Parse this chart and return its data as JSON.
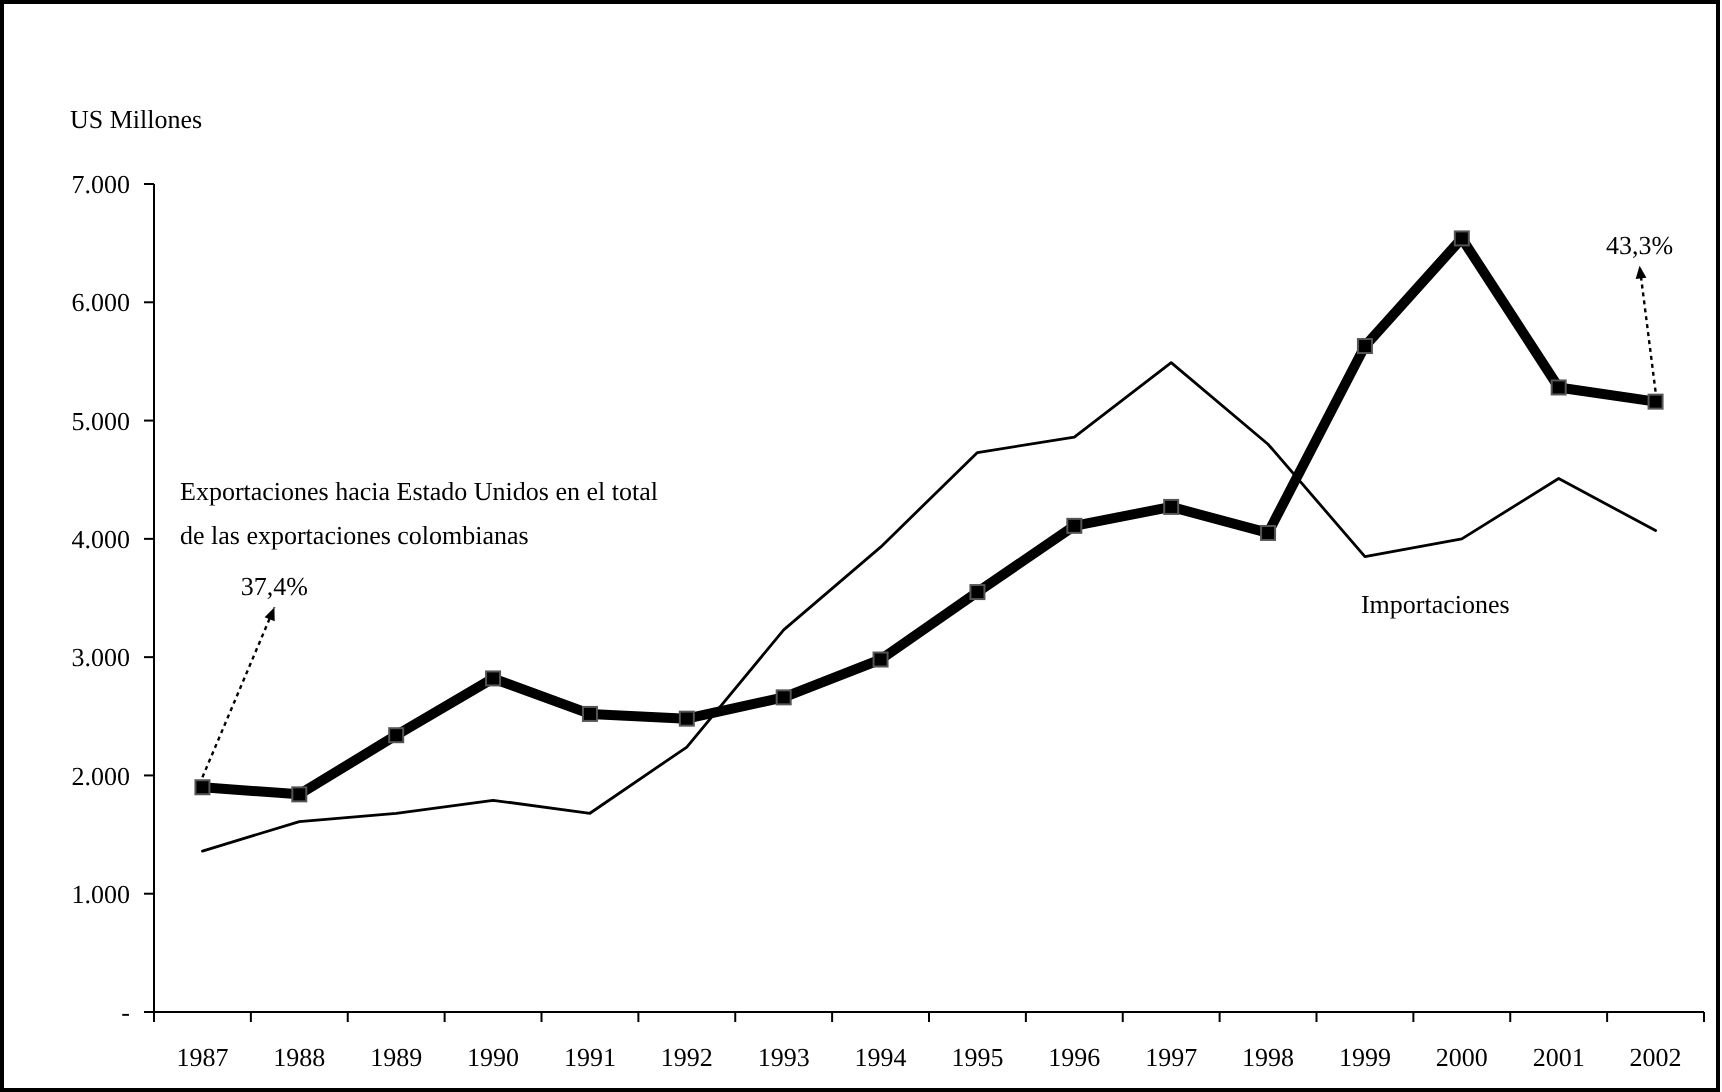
{
  "chart_data": {
    "type": "line",
    "ylabel": "US Millones",
    "categories": [
      "1987",
      "1988",
      "1989",
      "1990",
      "1991",
      "1992",
      "1993",
      "1994",
      "1995",
      "1996",
      "1997",
      "1998",
      "1999",
      "2000",
      "2001",
      "2002"
    ],
    "series": [
      {
        "color": "#000000",
        "marker": "square",
        "values": [
          1900,
          1840,
          2340,
          2820,
          2520,
          2480,
          2660,
          2980,
          3550,
          4110,
          4270,
          4050,
          5630,
          6540,
          5280,
          5160
        ]
      },
      {
        "name": "Importaciones",
        "color": "#000000",
        "marker": "none",
        "values": [
          1360,
          1610,
          1680,
          1790,
          1680,
          2240,
          3230,
          3930,
          4730,
          4860,
          5490,
          4800,
          3850,
          4000,
          4510,
          4070
        ]
      }
    ],
    "ylim": [
      0,
      7000
    ],
    "yticks": [
      {
        "value": 0,
        "label": "-"
      },
      {
        "value": 1000,
        "label": "1.000"
      },
      {
        "value": 2000,
        "label": "2.000"
      },
      {
        "value": 3000,
        "label": "3.000"
      },
      {
        "value": 4000,
        "label": "4.000"
      },
      {
        "value": 5000,
        "label": "5.000"
      },
      {
        "value": 6000,
        "label": "6.000"
      },
      {
        "value": 7000,
        "label": "7.000"
      }
    ],
    "grid": false,
    "legend": false,
    "annotations": [
      "Exportaciones hacia Estado Unidos en el total de las exportaciones colombianas",
      {
        "text": "37,4%",
        "x": "1987",
        "y": 1900
      },
      {
        "text": "43,3%",
        "x": "2002",
        "y": 5160
      }
    ]
  }
}
